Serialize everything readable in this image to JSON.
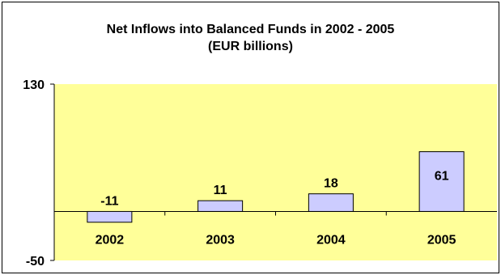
{
  "chart_data": {
    "type": "bar",
    "title": "Net Inflows into Balanced Funds in 2002 -  2005",
    "subtitle": "(EUR billions)",
    "categories": [
      "2002",
      "2003",
      "2004",
      "2005"
    ],
    "values": [
      -11,
      11,
      18,
      61
    ],
    "ylim": [
      -50,
      130
    ],
    "yticks": [
      "130",
      "-50"
    ],
    "grid": false,
    "legend": "none",
    "colors": {
      "plot_background": "#ffff99",
      "bar_fill": "#ccccff",
      "bar_stroke": "#000000"
    }
  }
}
